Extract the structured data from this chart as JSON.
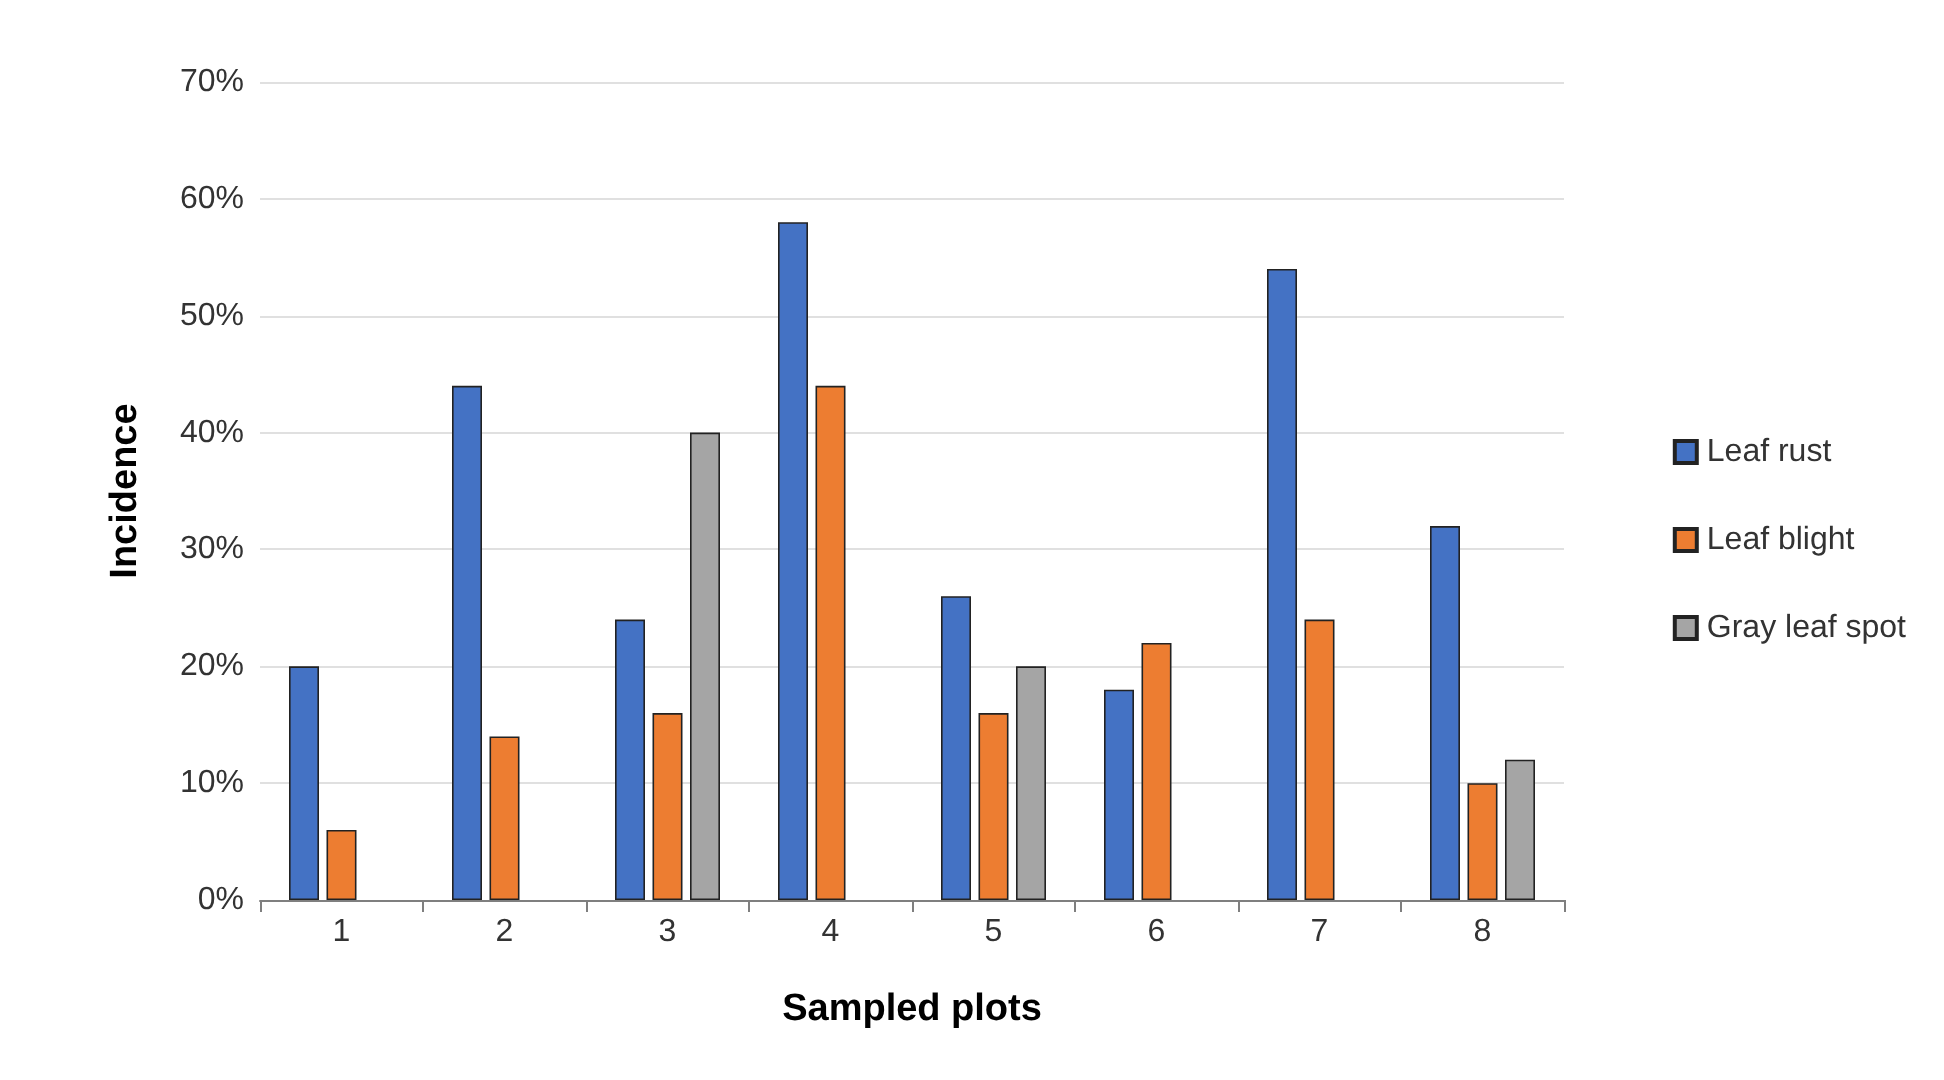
{
  "chart_data": {
    "type": "bar",
    "xlabel": "Sampled plots",
    "ylabel": "Incidence",
    "categories": [
      "1",
      "2",
      "3",
      "4",
      "5",
      "6",
      "7",
      "8"
    ],
    "series": [
      {
        "name": "Leaf rust",
        "color": "#4472c4",
        "values": [
          20,
          44,
          24,
          58,
          26,
          18,
          54,
          32
        ]
      },
      {
        "name": "Leaf blight",
        "color": "#ed7d31",
        "values": [
          6,
          14,
          16,
          44,
          16,
          22,
          24,
          10
        ]
      },
      {
        "name": "Gray leaf spot",
        "color": "#a5a5a5",
        "values": [
          null,
          null,
          40,
          null,
          20,
          null,
          null,
          12
        ]
      }
    ],
    "ylim": [
      0,
      70
    ],
    "yticks": [
      {
        "value": 0,
        "label": "0%"
      },
      {
        "value": 10,
        "label": "10%"
      },
      {
        "value": 20,
        "label": "20%"
      },
      {
        "value": 30,
        "label": "30%"
      },
      {
        "value": 40,
        "label": "40%"
      },
      {
        "value": 50,
        "label": "50%"
      },
      {
        "value": 60,
        "label": "60%"
      },
      {
        "value": 70,
        "label": "70%"
      }
    ],
    "grid": "y",
    "legend": "right"
  }
}
